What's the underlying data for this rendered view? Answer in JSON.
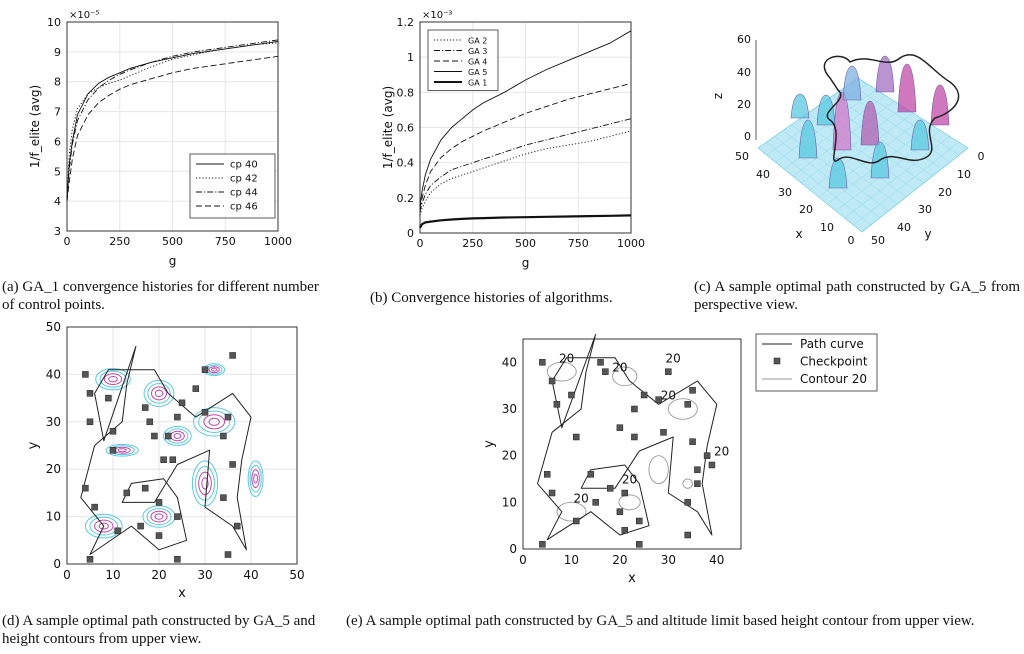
{
  "captions": {
    "a": "(a) GA_1 convergence histories for different number of control points.",
    "b": "(b) Convergence histories of algorithms.",
    "c": "(c) A sample optimal path constructed by GA_5 from perspective view.",
    "d": "(d) A sample optimal path constructed by GA_5 and height contours from upper view.",
    "e": "(e) A sample optimal path constructed by GA_5 and altitude limit based height contour from upper view."
  },
  "colors": {
    "contour_cyan": "#5ac8e0",
    "contour_magenta": "#c04aa8",
    "checkpoint": "#555555"
  },
  "chart_data": [
    {
      "id": "a",
      "type": "line",
      "xlabel": "g",
      "ylabel": "1/f_elite (avg)",
      "exponent": "×10⁻⁵",
      "xlim": [
        0,
        1000
      ],
      "ylim": [
        3,
        10
      ],
      "xticks": [
        "0",
        "250",
        "500",
        "750",
        "1000"
      ],
      "yticks": [
        "3",
        "4",
        "5",
        "6",
        "7",
        "8",
        "9",
        "10"
      ],
      "grid": true,
      "legend_position": "lower-right",
      "x": [
        0,
        10,
        25,
        50,
        100,
        150,
        200,
        250,
        300,
        400,
        500,
        600,
        700,
        800,
        900,
        1000
      ],
      "series": [
        {
          "name": "cp 40",
          "style": "solid",
          "values": [
            4.0,
            5.2,
            6.0,
            6.9,
            7.6,
            7.95,
            8.15,
            8.3,
            8.45,
            8.65,
            8.8,
            8.95,
            9.05,
            9.15,
            9.25,
            9.35
          ]
        },
        {
          "name": "cp 42",
          "style": "dotted",
          "values": [
            4.0,
            5.5,
            6.4,
            7.1,
            7.6,
            7.8,
            7.95,
            8.05,
            8.2,
            8.5,
            8.75,
            8.9,
            9.05,
            9.15,
            9.25,
            9.3
          ]
        },
        {
          "name": "cp 44",
          "style": "dashdot",
          "values": [
            4.0,
            5.0,
            5.9,
            6.7,
            7.4,
            7.8,
            8.05,
            8.25,
            8.4,
            8.65,
            8.85,
            9.0,
            9.1,
            9.2,
            9.3,
            9.4
          ]
        },
        {
          "name": "cp 46",
          "style": "dashed",
          "values": [
            4.0,
            4.6,
            5.4,
            6.2,
            6.9,
            7.3,
            7.55,
            7.75,
            7.9,
            8.1,
            8.3,
            8.45,
            8.55,
            8.65,
            8.75,
            8.85
          ]
        }
      ]
    },
    {
      "id": "b",
      "type": "line",
      "xlabel": "g",
      "ylabel": "1/f_elite (avg)",
      "exponent": "×10⁻³",
      "xlim": [
        0,
        1000
      ],
      "ylim": [
        0,
        1.2
      ],
      "xticks": [
        "0",
        "250",
        "500",
        "750",
        "1000"
      ],
      "yticks": [
        "0",
        "0.2",
        "0.4",
        "0.6",
        "0.8",
        "1",
        "1.2"
      ],
      "grid": true,
      "legend_position": "top-left",
      "x": [
        0,
        10,
        25,
        50,
        100,
        150,
        200,
        250,
        300,
        400,
        500,
        600,
        700,
        800,
        900,
        1000
      ],
      "series": [
        {
          "name": "GA 2",
          "style": "dotted",
          "values": [
            0.1,
            0.14,
            0.18,
            0.23,
            0.28,
            0.31,
            0.33,
            0.35,
            0.37,
            0.41,
            0.45,
            0.48,
            0.5,
            0.52,
            0.55,
            0.58
          ]
        },
        {
          "name": "GA 3",
          "style": "dashdot",
          "values": [
            0.12,
            0.17,
            0.22,
            0.27,
            0.32,
            0.36,
            0.38,
            0.4,
            0.42,
            0.46,
            0.5,
            0.53,
            0.56,
            0.59,
            0.62,
            0.65
          ]
        },
        {
          "name": "GA 4",
          "style": "dashed",
          "values": [
            0.14,
            0.2,
            0.27,
            0.35,
            0.43,
            0.48,
            0.52,
            0.55,
            0.58,
            0.63,
            0.68,
            0.72,
            0.76,
            0.79,
            0.82,
            0.85
          ]
        },
        {
          "name": "GA 5",
          "style": "solid",
          "values": [
            0.15,
            0.24,
            0.33,
            0.42,
            0.53,
            0.6,
            0.65,
            0.7,
            0.74,
            0.8,
            0.87,
            0.93,
            0.98,
            1.03,
            1.08,
            1.15
          ]
        },
        {
          "name": "GA 1",
          "style": "thick",
          "values": [
            0.03,
            0.05,
            0.06,
            0.065,
            0.072,
            0.077,
            0.08,
            0.083,
            0.085,
            0.088,
            0.09,
            0.092,
            0.094,
            0.096,
            0.098,
            0.1
          ]
        }
      ]
    },
    {
      "id": "c",
      "type": "surface",
      "xlabel": "x",
      "ylabel": "y",
      "zlabel": "z",
      "xticks": [
        "50",
        "40",
        "30",
        "20",
        "10",
        "0"
      ],
      "yticks": [
        "0",
        "10",
        "20",
        "30",
        "40",
        "50"
      ],
      "zticks": [
        "0",
        "20",
        "40",
        "60"
      ]
    },
    {
      "id": "d",
      "type": "contour",
      "xlabel": "x",
      "ylabel": "y",
      "xlim": [
        0,
        50
      ],
      "ylim": [
        0,
        50
      ],
      "xticks": [
        "0",
        "10",
        "20",
        "30",
        "40",
        "50"
      ],
      "yticks": [
        "0",
        "10",
        "20",
        "30",
        "40",
        "50"
      ],
      "peaks": [
        [
          10,
          39,
          3.0,
          1.8
        ],
        [
          20,
          36,
          2.6,
          2.2
        ],
        [
          32,
          41,
          1.8,
          1.0
        ],
        [
          32,
          30,
          3.6,
          2.4
        ],
        [
          12,
          24,
          2.8,
          1.0
        ],
        [
          8,
          8,
          3.2,
          2.0
        ],
        [
          20,
          10,
          2.8,
          1.8
        ],
        [
          30,
          17,
          2.2,
          3.8
        ],
        [
          41,
          18,
          1.3,
          3.0
        ],
        [
          24,
          27,
          2.4,
          1.6
        ]
      ],
      "path": [
        [
          15,
          46
        ],
        [
          13,
          38
        ],
        [
          12,
          30
        ],
        [
          6,
          25
        ],
        [
          3,
          14
        ],
        [
          8,
          8
        ],
        [
          5,
          2
        ],
        [
          14,
          8
        ],
        [
          20,
          3
        ],
        [
          26,
          5
        ],
        [
          24,
          14
        ],
        [
          21,
          18
        ],
        [
          14,
          17
        ],
        [
          12,
          13
        ],
        [
          19,
          13
        ],
        [
          24,
          21
        ],
        [
          31,
          24
        ],
        [
          30,
          12
        ],
        [
          36,
          8
        ],
        [
          39,
          3
        ],
        [
          37,
          14
        ],
        [
          38,
          22
        ],
        [
          40,
          31
        ],
        [
          36,
          36
        ],
        [
          28,
          31
        ],
        [
          22,
          36
        ],
        [
          19,
          41
        ],
        [
          9,
          41
        ],
        [
          6,
          36
        ],
        [
          8,
          26
        ],
        [
          15,
          46
        ]
      ],
      "checkpoints": [
        [
          4,
          40
        ],
        [
          5,
          36
        ],
        [
          9,
          35
        ],
        [
          5,
          30
        ],
        [
          10,
          28
        ],
        [
          10,
          24
        ],
        [
          4,
          16
        ],
        [
          6,
          12
        ],
        [
          5,
          1
        ],
        [
          11,
          7
        ],
        [
          13,
          15
        ],
        [
          17,
          16
        ],
        [
          20,
          13
        ],
        [
          16,
          8
        ],
        [
          20,
          6
        ],
        [
          24,
          1
        ],
        [
          24,
          10
        ],
        [
          23,
          22
        ],
        [
          21,
          22
        ],
        [
          22,
          27
        ],
        [
          24,
          31
        ],
        [
          25,
          34
        ],
        [
          30,
          32
        ],
        [
          35,
          31
        ],
        [
          34,
          27
        ],
        [
          36,
          21
        ],
        [
          34,
          14
        ],
        [
          37,
          8
        ],
        [
          35,
          2
        ],
        [
          28,
          37
        ],
        [
          30,
          41
        ],
        [
          36,
          44
        ],
        [
          19,
          27
        ],
        [
          18,
          30
        ],
        [
          17,
          33
        ]
      ]
    },
    {
      "id": "e",
      "type": "contour",
      "xlabel": "x",
      "ylabel": "y",
      "xlim": [
        0,
        45
      ],
      "ylim": [
        0,
        45
      ],
      "xticks": [
        "0",
        "10",
        "20",
        "30",
        "40"
      ],
      "yticks": [
        "0",
        "10",
        "20",
        "30",
        "40"
      ],
      "legend": [
        "Path curve",
        "Checkpoint",
        "Contour 20"
      ],
      "contour_labels": [
        "20",
        "20",
        "20",
        "20",
        "20",
        "20",
        "20"
      ],
      "path": [
        [
          15,
          46
        ],
        [
          13,
          38
        ],
        [
          12,
          30
        ],
        [
          6,
          25
        ],
        [
          3,
          14
        ],
        [
          8,
          8
        ],
        [
          5,
          2
        ],
        [
          14,
          8
        ],
        [
          20,
          3
        ],
        [
          26,
          5
        ],
        [
          24,
          14
        ],
        [
          21,
          18
        ],
        [
          14,
          17
        ],
        [
          12,
          13
        ],
        [
          19,
          13
        ],
        [
          24,
          21
        ],
        [
          31,
          24
        ],
        [
          30,
          12
        ],
        [
          36,
          8
        ],
        [
          39,
          3
        ],
        [
          37,
          14
        ],
        [
          38,
          22
        ],
        [
          40,
          31
        ],
        [
          36,
          36
        ],
        [
          28,
          31
        ],
        [
          22,
          36
        ],
        [
          19,
          41
        ],
        [
          9,
          41
        ],
        [
          6,
          36
        ],
        [
          8,
          26
        ],
        [
          15,
          46
        ]
      ],
      "checkpoints": [
        [
          4,
          40
        ],
        [
          6,
          36
        ],
        [
          7,
          31
        ],
        [
          10,
          33
        ],
        [
          11,
          24
        ],
        [
          5,
          16
        ],
        [
          6,
          12
        ],
        [
          4,
          1
        ],
        [
          11,
          6
        ],
        [
          14,
          16
        ],
        [
          15,
          10
        ],
        [
          18,
          13
        ],
        [
          21,
          12
        ],
        [
          20,
          8
        ],
        [
          21,
          4
        ],
        [
          24,
          1
        ],
        [
          24,
          6
        ],
        [
          23,
          24
        ],
        [
          20,
          26
        ],
        [
          25,
          33
        ],
        [
          23,
          30
        ],
        [
          17,
          38
        ],
        [
          16,
          40
        ],
        [
          28,
          32
        ],
        [
          29,
          25
        ],
        [
          34,
          31
        ],
        [
          35,
          23
        ],
        [
          36,
          17
        ],
        [
          36,
          14
        ],
        [
          34,
          10
        ],
        [
          34,
          3
        ],
        [
          38,
          20
        ],
        [
          39,
          18
        ],
        [
          35,
          34
        ],
        [
          30,
          38
        ]
      ]
    }
  ]
}
